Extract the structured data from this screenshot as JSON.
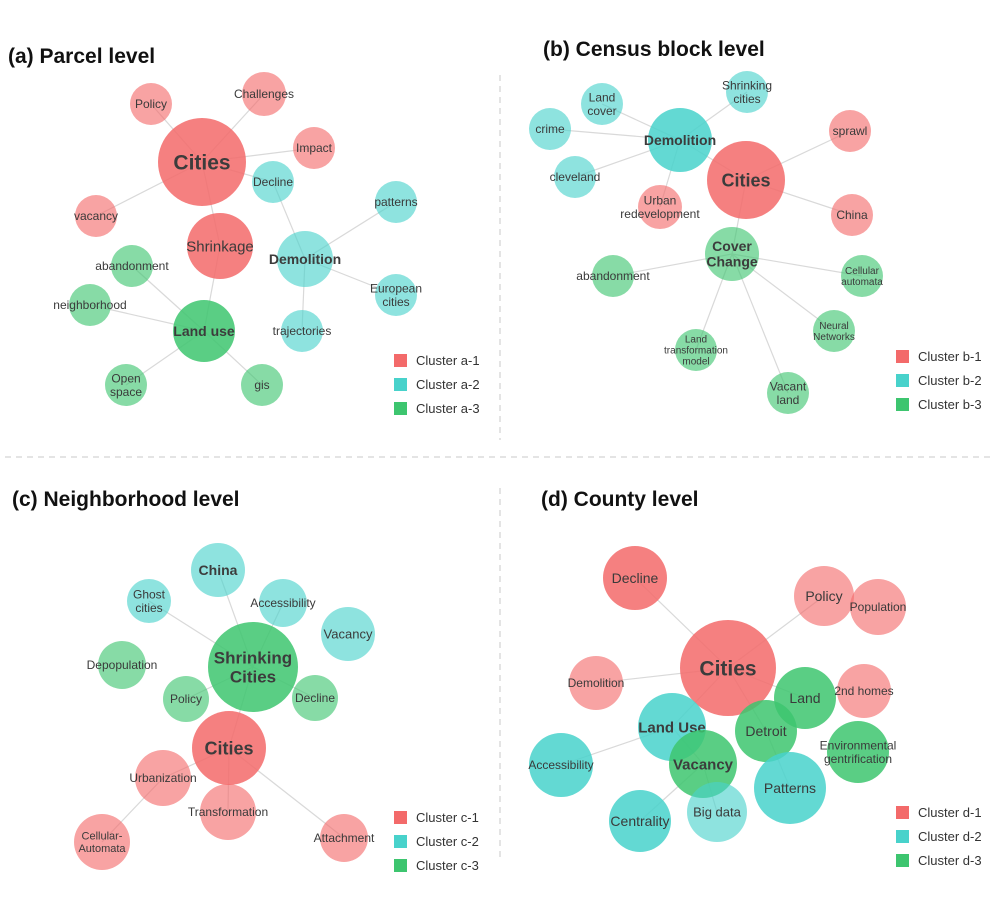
{
  "colors": {
    "cluster1": "#f36a6a",
    "cluster2": "#48d2cb",
    "cluster3": "#3dc56f"
  },
  "panels": [
    {
      "title": "(a) Parcel level",
      "legend": [
        "Cluster a-1",
        "Cluster a-2",
        "Cluster a-3"
      ],
      "nodes": {
        "cities": "Cities",
        "policy": "Policy",
        "challenges": "Challenges",
        "impact": "Impact",
        "decline": "Decline",
        "vacancy": "vacancy",
        "shrinkage": "Shrinkage",
        "demolition": "Demolition",
        "patterns": "patterns",
        "abandonment": "abandonment",
        "neighborhood": "neighborhood",
        "landuse": "Land use",
        "european": "European cities",
        "trajectories": "trajectories",
        "openspace": "Open space",
        "gis": "gis"
      }
    },
    {
      "title": "(b) Census block level",
      "legend": [
        "Cluster b-1",
        "Cluster b-2",
        "Cluster b-3"
      ],
      "nodes": {
        "landcover": "Land cover",
        "shrinking": "Shrinking cities",
        "crime": "crime",
        "demolition": "Demolition",
        "sprawl": "sprawl",
        "cleveland": "cleveland",
        "cities": "Cities",
        "urban": "Urban redevelopment",
        "china": "China",
        "coverchange": "Cover Change",
        "abandonment": "abandonment",
        "cellular": "Cellular automata",
        "landtrans": "Land transformation model",
        "neural": "Neural Networks",
        "vacant": "Vacant land"
      }
    },
    {
      "title": "(c) Neighborhood level",
      "legend": [
        "Cluster c-1",
        "Cluster c-2",
        "Cluster c-3"
      ],
      "nodes": {
        "china": "China",
        "ghost": "Ghost cities",
        "accessibility": "Accessibility",
        "vacancy": "Vacancy",
        "depopulation": "Depopulation",
        "shrinking": "Shrinking Cities",
        "policy": "Policy",
        "decline": "Decline",
        "cities": "Cities",
        "urbanization": "Urbanization",
        "transformation": "Transformation",
        "cellular": "Cellular- Automata",
        "attachment": "Attachment"
      }
    },
    {
      "title": "(d) County level",
      "legend": [
        "Cluster d-1",
        "Cluster d-2",
        "Cluster d-3"
      ],
      "nodes": {
        "decline": "Decline",
        "policy": "Policy",
        "population": "Population",
        "cities": "Cities",
        "demolition": "Demolition",
        "land": "Land",
        "homes": "2nd homes",
        "landuse": "Land Use",
        "detroit": "Detroit",
        "environmental": "Environmental gentrification",
        "accessibility": "Accessibility",
        "vacancy": "Vacancy",
        "patterns": "Patterns",
        "centrality": "Centrality",
        "bigdata": "Big data"
      }
    }
  ]
}
